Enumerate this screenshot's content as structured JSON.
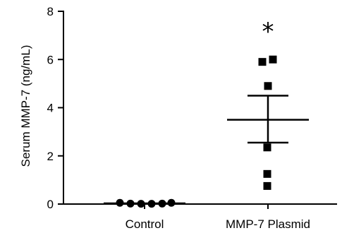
{
  "chart_data": {
    "type": "scatter",
    "ylabel": "Serum MMP-7 (ng/mL)",
    "ylim": [
      0,
      8
    ],
    "yticks": [
      "0",
      "2",
      "4",
      "6",
      "8"
    ],
    "categories": [
      "Control",
      "MMP-7 Plasmid"
    ],
    "series": [
      {
        "category": "Control",
        "marker": "circle",
        "values": [
          0.05,
          0.02,
          0.01,
          0.01,
          0.02,
          0.05
        ],
        "mean": 0.03,
        "sem_upper": 0.03,
        "sem_lower": 0.03
      },
      {
        "category": "MMP-7 Plasmid",
        "marker": "square",
        "values": [
          5.9,
          6.0,
          4.9,
          2.35,
          1.25,
          0.75
        ],
        "mean": 3.5,
        "sem_upper": 4.5,
        "sem_lower": 2.55
      }
    ],
    "annotations": [
      {
        "text": "*",
        "category": "MMP-7 Plasmid"
      }
    ],
    "marker_color": "#000000"
  }
}
